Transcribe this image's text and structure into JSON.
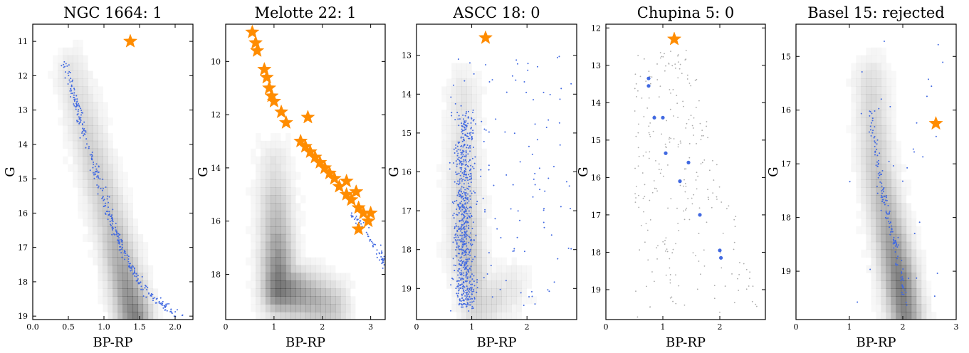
{
  "colors": {
    "member": "#4169E1",
    "field_star": "#aaaaaa",
    "highlight": "#FF8C00",
    "density": "#000000"
  },
  "chart_data": [
    {
      "type": "scatter",
      "title": "NGC 1664: 1",
      "xlabel": "BP-RP",
      "ylabel": "G",
      "xlim": [
        0.0,
        2.25
      ],
      "ylim": [
        19.1,
        10.5
      ],
      "y_inverted": true,
      "xticks": [
        "0.0",
        "0.5",
        "1.0",
        "1.5",
        "2.0"
      ],
      "xtick_values": [
        0.0,
        0.5,
        1.0,
        1.5,
        2.0
      ],
      "yticks": [
        "11",
        "12",
        "13",
        "14",
        "15",
        "16",
        "17",
        "18",
        "19"
      ],
      "ytick_values": [
        11,
        12,
        13,
        14,
        15,
        16,
        17,
        18,
        19
      ],
      "density_track": [
        [
          0.55,
          12.0,
          0.1
        ],
        [
          0.8,
          14.0,
          0.16
        ],
        [
          1.1,
          16.3,
          0.22
        ],
        [
          1.3,
          18.0,
          0.38
        ],
        [
          1.42,
          19.0,
          0.48
        ]
      ],
      "member_track": [
        [
          0.45,
          11.6
        ],
        [
          0.6,
          12.8
        ],
        [
          0.8,
          14.2
        ],
        [
          1.0,
          15.5
        ],
        [
          1.15,
          16.5
        ],
        [
          1.35,
          17.5
        ],
        [
          1.6,
          18.3
        ],
        [
          2.05,
          19.0
        ]
      ],
      "member_count": 330,
      "highlight": [
        {
          "x": 1.37,
          "y": 11.0
        }
      ]
    },
    {
      "type": "scatter",
      "title": "Melotte 22: 1",
      "xlabel": "BP-RP",
      "ylabel": "G",
      "xlim": [
        0.0,
        3.3
      ],
      "ylim": [
        19.7,
        8.6
      ],
      "y_inverted": true,
      "xticks": [
        "0",
        "1",
        "2",
        "3"
      ],
      "xtick_values": [
        0,
        1,
        2,
        3
      ],
      "yticks": [
        "10",
        "12",
        "14",
        "16",
        "18"
      ],
      "ytick_values": [
        10,
        12,
        14,
        16,
        18
      ],
      "density_track": [
        [
          1.0,
          14.0,
          0.1
        ],
        [
          1.05,
          16.5,
          0.3
        ],
        [
          1.1,
          18.5,
          0.55
        ],
        [
          1.6,
          18.8,
          0.35
        ],
        [
          2.2,
          19.2,
          0.22
        ]
      ],
      "member_track": [
        [
          2.6,
          15.7
        ],
        [
          2.9,
          16.4
        ],
        [
          3.2,
          17.2
        ],
        [
          3.3,
          17.8
        ]
      ],
      "member_count": 60,
      "highlight": [
        {
          "x": 0.55,
          "y": 8.9
        },
        {
          "x": 0.62,
          "y": 9.3
        },
        {
          "x": 0.65,
          "y": 9.6
        },
        {
          "x": 0.8,
          "y": 10.3
        },
        {
          "x": 0.85,
          "y": 10.6
        },
        {
          "x": 0.9,
          "y": 11.0
        },
        {
          "x": 0.95,
          "y": 11.3
        },
        {
          "x": 1.0,
          "y": 11.5
        },
        {
          "x": 1.15,
          "y": 11.9
        },
        {
          "x": 1.25,
          "y": 12.3
        },
        {
          "x": 1.7,
          "y": 12.1
        },
        {
          "x": 1.55,
          "y": 13.0
        },
        {
          "x": 1.65,
          "y": 13.2
        },
        {
          "x": 1.75,
          "y": 13.4
        },
        {
          "x": 1.85,
          "y": 13.6
        },
        {
          "x": 1.95,
          "y": 13.8
        },
        {
          "x": 2.05,
          "y": 14.0
        },
        {
          "x": 2.15,
          "y": 14.2
        },
        {
          "x": 2.25,
          "y": 14.4
        },
        {
          "x": 2.35,
          "y": 14.7
        },
        {
          "x": 2.5,
          "y": 14.5
        },
        {
          "x": 2.5,
          "y": 15.0
        },
        {
          "x": 2.6,
          "y": 15.2
        },
        {
          "x": 2.7,
          "y": 14.9
        },
        {
          "x": 2.75,
          "y": 15.5
        },
        {
          "x": 2.85,
          "y": 15.7
        },
        {
          "x": 3.0,
          "y": 15.7
        },
        {
          "x": 2.95,
          "y": 16.0
        },
        {
          "x": 2.75,
          "y": 16.3
        }
      ]
    },
    {
      "type": "scatter",
      "title": "ASCC 18: 0",
      "xlabel": "BP-RP",
      "ylabel": "G",
      "xlim": [
        0.0,
        2.9
      ],
      "ylim": [
        19.8,
        12.2
      ],
      "y_inverted": true,
      "xticks": [
        "0",
        "1",
        "2"
      ],
      "xtick_values": [
        0,
        1,
        2
      ],
      "yticks": [
        "13",
        "14",
        "15",
        "16",
        "17",
        "18",
        "19"
      ],
      "ytick_values": [
        13,
        14,
        15,
        16,
        17,
        18,
        19
      ],
      "density_track": [
        [
          0.85,
          14.0,
          0.08
        ],
        [
          0.85,
          16.0,
          0.14
        ],
        [
          0.9,
          18.0,
          0.22
        ],
        [
          1.1,
          19.5,
          0.16
        ],
        [
          1.7,
          19.0,
          0.08
        ]
      ],
      "member_track": [
        [
          0.9,
          14.5
        ],
        [
          0.85,
          16.5
        ],
        [
          0.85,
          18.0
        ],
        [
          0.9,
          19.5
        ]
      ],
      "member_count": 800,
      "highlight": [
        {
          "x": 1.25,
          "y": 12.55
        }
      ]
    },
    {
      "type": "scatter",
      "title": "Chupina 5: 0",
      "xlabel": "BP-RP",
      "ylabel": "G",
      "xlim": [
        0.0,
        2.8
      ],
      "ylim": [
        19.8,
        11.9
      ],
      "y_inverted": true,
      "xticks": [
        "0",
        "1",
        "2"
      ],
      "xtick_values": [
        0,
        1,
        2
      ],
      "yticks": [
        "12",
        "13",
        "14",
        "15",
        "16",
        "17",
        "18",
        "19"
      ],
      "ytick_values": [
        12,
        13,
        14,
        15,
        16,
        17,
        18,
        19
      ],
      "density_track": [],
      "member_track": [],
      "members": [
        {
          "x": 0.75,
          "y": 13.35
        },
        {
          "x": 0.75,
          "y": 13.55
        },
        {
          "x": 0.85,
          "y": 14.4
        },
        {
          "x": 1.0,
          "y": 14.4
        },
        {
          "x": 1.05,
          "y": 15.35
        },
        {
          "x": 1.45,
          "y": 15.6
        },
        {
          "x": 1.3,
          "y": 16.1
        },
        {
          "x": 1.65,
          "y": 17.0
        },
        {
          "x": 2.0,
          "y": 17.95
        },
        {
          "x": 2.02,
          "y": 18.15
        }
      ],
      "field_count": 260,
      "highlight": [
        {
          "x": 1.2,
          "y": 12.3
        }
      ]
    },
    {
      "type": "scatter",
      "title": "Basel 15: rejected",
      "xlabel": "BP-RP",
      "ylabel": "G",
      "xlim": [
        0.0,
        3.0
      ],
      "ylim": [
        19.9,
        14.4
      ],
      "y_inverted": true,
      "xticks": [
        "0",
        "1",
        "2",
        "3"
      ],
      "xtick_values": [
        0,
        1,
        2,
        3
      ],
      "yticks": [
        "15",
        "16",
        "17",
        "18",
        "19"
      ],
      "ytick_values": [
        15,
        16,
        17,
        18,
        19
      ],
      "density_track": [
        [
          1.4,
          15.5,
          0.12
        ],
        [
          1.5,
          17.0,
          0.2
        ],
        [
          1.7,
          18.0,
          0.3
        ],
        [
          1.95,
          19.2,
          0.5
        ],
        [
          2.05,
          19.8,
          0.45
        ]
      ],
      "member_track": [
        [
          1.4,
          16.0
        ],
        [
          1.6,
          17.5
        ],
        [
          1.85,
          18.5
        ],
        [
          2.05,
          19.6
        ]
      ],
      "member_count": 170,
      "highlight": [
        {
          "x": 2.62,
          "y": 16.25
        }
      ]
    }
  ]
}
